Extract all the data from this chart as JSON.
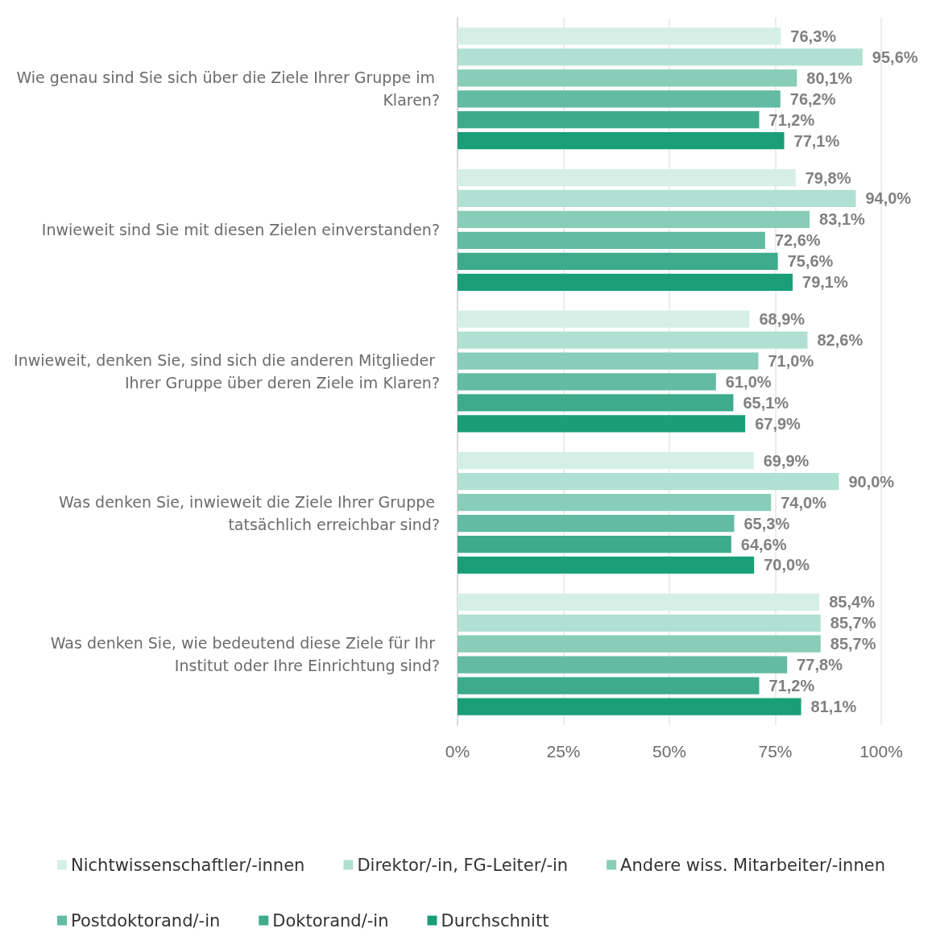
{
  "chart_data": {
    "type": "bar",
    "orientation": "horizontal",
    "categories": [
      "Wie genau sind Sie sich über die Ziele Ihrer Gruppe im Klaren?",
      "Inwieweit sind Sie mit diesen Zielen einverstanden?",
      "Inwieweit, denken Sie, sind sich die anderen Mitglieder Ihrer Gruppe über deren Ziele im Klaren?",
      "Was denken Sie, inwieweit die Ziele Ihrer Gruppe tatsächlich erreichbar sind?",
      "Was denken Sie, wie bedeutend diese Ziele für Ihr Institut oder Ihre Einrichtung sind?"
    ],
    "series": [
      {
        "name": "Nichtwissenschaftler/-innen",
        "color": "#d5efe6",
        "values": [
          76.3,
          79.8,
          68.9,
          69.9,
          85.4
        ],
        "value_labels": [
          "76,3%",
          "79,8%",
          "68,9%",
          "69,9%",
          "85,4%"
        ]
      },
      {
        "name": "Direktor/-in, FG-Leiter/-in",
        "color": "#b0e0d1",
        "values": [
          95.6,
          94.0,
          82.6,
          90.0,
          85.7
        ],
        "value_labels": [
          "95,6%",
          "94,0%",
          "82,6%",
          "90,0%",
          "85,7%"
        ]
      },
      {
        "name": "Andere wiss. Mitarbeiter/-innen",
        "color": "#88cdb8",
        "values": [
          80.1,
          83.1,
          71.0,
          74.0,
          85.7
        ],
        "value_labels": [
          "80,1%",
          "83,1%",
          "71,0%",
          "74,0%",
          "85,7%"
        ]
      },
      {
        "name": "Postdoktorand/-in",
        "color": "#62bba2",
        "values": [
          76.2,
          72.6,
          61.0,
          65.3,
          77.8
        ],
        "value_labels": [
          "76,2%",
          "72,6%",
          "61,0%",
          "65,3%",
          "77,8%"
        ]
      },
      {
        "name": "Doktorand/-in",
        "color": "#3dab8c",
        "values": [
          71.2,
          75.6,
          65.1,
          64.6,
          71.2
        ],
        "value_labels": [
          "71,2%",
          "75,6%",
          "65,1%",
          "64,6%",
          "71,2%"
        ]
      },
      {
        "name": "Durchschnitt",
        "color": "#1a9e78",
        "values": [
          77.1,
          79.1,
          67.9,
          70.0,
          81.1
        ],
        "value_labels": [
          "77,1%",
          "79,1%",
          "67,9%",
          "70,0%",
          "81,1%"
        ]
      }
    ],
    "xlim": [
      0,
      100
    ],
    "xticks": [
      {
        "value": 0,
        "label": "0%"
      },
      {
        "value": 25,
        "label": "25%"
      },
      {
        "value": 50,
        "label": "50%"
      },
      {
        "value": 75,
        "label": "75%"
      },
      {
        "value": 100,
        "label": "100%"
      }
    ],
    "grid": "x",
    "legend": "bottom"
  }
}
